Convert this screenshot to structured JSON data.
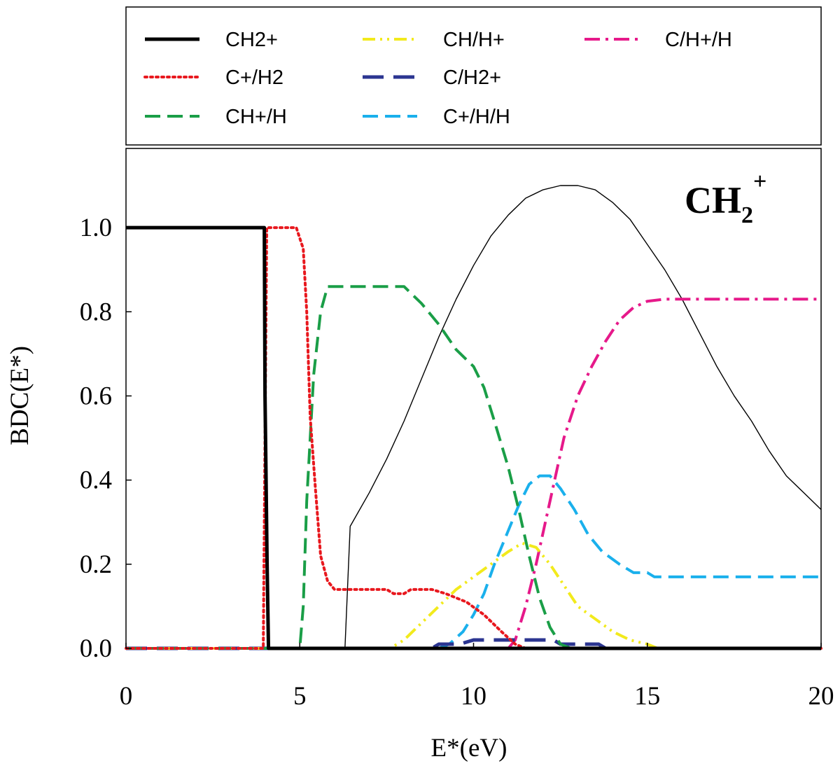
{
  "chart_data": {
    "type": "line",
    "title": "",
    "annotation": {
      "main": "CH",
      "subscript": "2",
      "superscript": "+"
    },
    "xlabel": "E*(eV)",
    "ylabel": "BDC(E*)",
    "xlim": [
      0,
      20
    ],
    "ylim": [
      0,
      1.16
    ],
    "x_ticks": [
      0,
      5,
      10,
      15,
      20
    ],
    "x_tick_labels": [
      "0",
      "5",
      "10",
      "15",
      "20"
    ],
    "y_ticks": [
      0,
      0.2,
      0.4,
      0.6,
      0.8,
      1.0
    ],
    "y_tick_labels": [
      "0.0",
      "0.2",
      "0.4",
      "0.6",
      "0.8",
      "1.0"
    ],
    "legend_position": "top-outside",
    "series": [
      {
        "name": "CH2+",
        "color": "#000000",
        "dash": "solid",
        "width": 5,
        "points": [
          [
            0,
            1.0
          ],
          [
            3.98,
            1.0
          ],
          [
            4.0,
            0.6
          ],
          [
            4.06,
            0.2
          ],
          [
            4.1,
            0.0
          ],
          [
            20,
            0.0
          ]
        ]
      },
      {
        "name": "C+/H2",
        "color": "#e8181e",
        "dash": "dot",
        "width": 4,
        "points": [
          [
            0,
            0.0
          ],
          [
            3.95,
            0.0
          ],
          [
            4.05,
            1.0
          ],
          [
            4.9,
            1.0
          ],
          [
            5.1,
            0.95
          ],
          [
            5.2,
            0.8
          ],
          [
            5.3,
            0.55
          ],
          [
            5.45,
            0.38
          ],
          [
            5.6,
            0.22
          ],
          [
            5.8,
            0.16
          ],
          [
            6.0,
            0.14
          ],
          [
            6.5,
            0.14
          ],
          [
            7.0,
            0.14
          ],
          [
            7.5,
            0.14
          ],
          [
            7.7,
            0.13
          ],
          [
            8.0,
            0.13
          ],
          [
            8.2,
            0.14
          ],
          [
            8.8,
            0.14
          ],
          [
            9.2,
            0.13
          ],
          [
            9.8,
            0.11
          ],
          [
            10.3,
            0.08
          ],
          [
            10.8,
            0.04
          ],
          [
            11.2,
            0.01
          ],
          [
            11.5,
            0.0
          ],
          [
            20,
            0.0
          ]
        ]
      },
      {
        "name": "CH+/H",
        "color": "#1a9e47",
        "dash": "dash",
        "width": 4,
        "points": [
          [
            0,
            0.0
          ],
          [
            5.0,
            0.0
          ],
          [
            5.1,
            0.1
          ],
          [
            5.2,
            0.35
          ],
          [
            5.4,
            0.65
          ],
          [
            5.6,
            0.8
          ],
          [
            5.8,
            0.86
          ],
          [
            6.5,
            0.86
          ],
          [
            7.5,
            0.86
          ],
          [
            8.0,
            0.86
          ],
          [
            8.5,
            0.82
          ],
          [
            9.0,
            0.77
          ],
          [
            9.5,
            0.71
          ],
          [
            10.0,
            0.67
          ],
          [
            10.3,
            0.62
          ],
          [
            10.6,
            0.54
          ],
          [
            11.0,
            0.43
          ],
          [
            11.3,
            0.33
          ],
          [
            11.6,
            0.22
          ],
          [
            11.9,
            0.12
          ],
          [
            12.2,
            0.05
          ],
          [
            12.5,
            0.01
          ],
          [
            12.8,
            0.0
          ],
          [
            20,
            0.0
          ]
        ]
      },
      {
        "name": "CH/H+",
        "color": "#f2ea1c",
        "dash": "dashdotdot",
        "width": 4,
        "points": [
          [
            0,
            0.0
          ],
          [
            7.6,
            0.0
          ],
          [
            8.0,
            0.02
          ],
          [
            8.5,
            0.06
          ],
          [
            9.0,
            0.1
          ],
          [
            9.5,
            0.14
          ],
          [
            10.0,
            0.17
          ],
          [
            10.5,
            0.2
          ],
          [
            11.0,
            0.23
          ],
          [
            11.4,
            0.25
          ],
          [
            11.8,
            0.24
          ],
          [
            12.2,
            0.2
          ],
          [
            12.6,
            0.15
          ],
          [
            13.0,
            0.1
          ],
          [
            13.5,
            0.07
          ],
          [
            14.0,
            0.04
          ],
          [
            14.5,
            0.02
          ],
          [
            15.0,
            0.01
          ],
          [
            15.3,
            0.0
          ],
          [
            20,
            0.0
          ]
        ]
      },
      {
        "name": "C/H2+",
        "color": "#2b3591",
        "dash": "longdash",
        "width": 5,
        "points": [
          [
            0,
            0.0
          ],
          [
            8.8,
            0.0
          ],
          [
            9.0,
            0.01
          ],
          [
            9.6,
            0.01
          ],
          [
            10.0,
            0.02
          ],
          [
            11.0,
            0.02
          ],
          [
            11.8,
            0.02
          ],
          [
            12.3,
            0.02
          ],
          [
            12.5,
            0.01
          ],
          [
            13.6,
            0.01
          ],
          [
            13.8,
            0.0
          ],
          [
            20,
            0.0
          ]
        ]
      },
      {
        "name": "C+/H/H",
        "color": "#1ab0ec",
        "dash": "dash",
        "width": 4,
        "points": [
          [
            0,
            0.0
          ],
          [
            9.0,
            0.0
          ],
          [
            9.3,
            0.01
          ],
          [
            9.7,
            0.04
          ],
          [
            10.0,
            0.08
          ],
          [
            10.3,
            0.13
          ],
          [
            10.6,
            0.2
          ],
          [
            11.0,
            0.28
          ],
          [
            11.3,
            0.34
          ],
          [
            11.6,
            0.39
          ],
          [
            11.9,
            0.41
          ],
          [
            12.2,
            0.41
          ],
          [
            12.5,
            0.38
          ],
          [
            12.9,
            0.33
          ],
          [
            13.3,
            0.27
          ],
          [
            13.7,
            0.23
          ],
          [
            14.2,
            0.2
          ],
          [
            14.6,
            0.18
          ],
          [
            15.0,
            0.18
          ],
          [
            15.2,
            0.17
          ],
          [
            16,
            0.17
          ],
          [
            18,
            0.17
          ],
          [
            20,
            0.17
          ]
        ]
      },
      {
        "name": "C/H+/H",
        "color": "#e6198a",
        "dash": "dashdot",
        "width": 4,
        "points": [
          [
            0,
            0.0
          ],
          [
            11.0,
            0.0
          ],
          [
            11.2,
            0.02
          ],
          [
            11.5,
            0.1
          ],
          [
            11.8,
            0.2
          ],
          [
            12.2,
            0.35
          ],
          [
            12.6,
            0.5
          ],
          [
            13.0,
            0.6
          ],
          [
            13.4,
            0.67
          ],
          [
            13.8,
            0.73
          ],
          [
            14.2,
            0.78
          ],
          [
            14.6,
            0.81
          ],
          [
            15.0,
            0.825
          ],
          [
            15.5,
            0.83
          ],
          [
            17,
            0.83
          ],
          [
            20,
            0.83
          ]
        ]
      },
      {
        "name": "energy-distribution",
        "legend": false,
        "color": "#000000",
        "dash": "solid",
        "width": 1.4,
        "points": [
          [
            6.3,
            0.0
          ],
          [
            6.45,
            0.29
          ],
          [
            7.0,
            0.37
          ],
          [
            7.5,
            0.45
          ],
          [
            8.0,
            0.54
          ],
          [
            8.5,
            0.64
          ],
          [
            9.0,
            0.74
          ],
          [
            9.5,
            0.83
          ],
          [
            10.0,
            0.91
          ],
          [
            10.5,
            0.98
          ],
          [
            11.0,
            1.03
          ],
          [
            11.5,
            1.07
          ],
          [
            12.0,
            1.09
          ],
          [
            12.5,
            1.1
          ],
          [
            13.0,
            1.1
          ],
          [
            13.5,
            1.09
          ],
          [
            14.0,
            1.06
          ],
          [
            14.5,
            1.02
          ],
          [
            15.0,
            0.96
          ],
          [
            15.5,
            0.9
          ],
          [
            16.0,
            0.83
          ],
          [
            16.5,
            0.75
          ],
          [
            17.0,
            0.67
          ],
          [
            17.5,
            0.6
          ],
          [
            18.0,
            0.54
          ],
          [
            18.5,
            0.47
          ],
          [
            19.0,
            0.41
          ],
          [
            19.5,
            0.37
          ],
          [
            20.0,
            0.33
          ]
        ]
      }
    ]
  }
}
